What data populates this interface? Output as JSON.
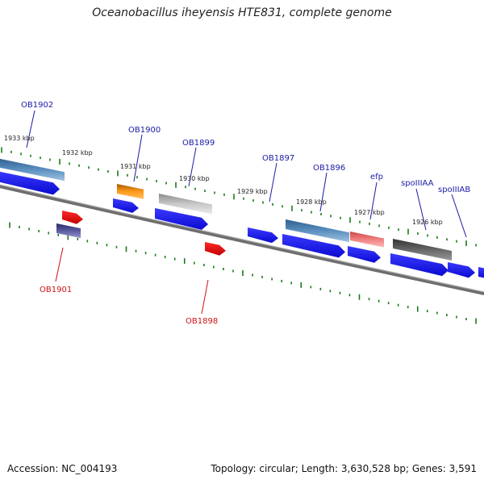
{
  "header": {
    "title": "Oceanobacillus iheyensis HTE831, complete genome"
  },
  "footer": {
    "accession": "Accession: NC_004193",
    "summary": "Topology: circular; Length: 3,630,528 bp; Genes: 3,591"
  },
  "kbp_labels": [
    "1933 kbp",
    "1932 kbp",
    "1931 kbp",
    "1930 kbp",
    "1929 kbp",
    "1928 kbp",
    "1927 kbp",
    "1926 kbp"
  ],
  "gene_labels_forward": [
    "OB1902",
    "OB1900",
    "OB1899",
    "OB1897",
    "OB1896",
    "efp",
    "spoIIIAA",
    "spoIIIAB"
  ],
  "gene_labels_reverse": [
    "OB1901",
    "OB1898"
  ],
  "colors": {
    "forward_label": "#1a1aa6",
    "reverse_label": "#cc1111",
    "tick": "#1a7a1a",
    "cds_blue": "#1010e6",
    "backbone": "#7a7a7a"
  }
}
